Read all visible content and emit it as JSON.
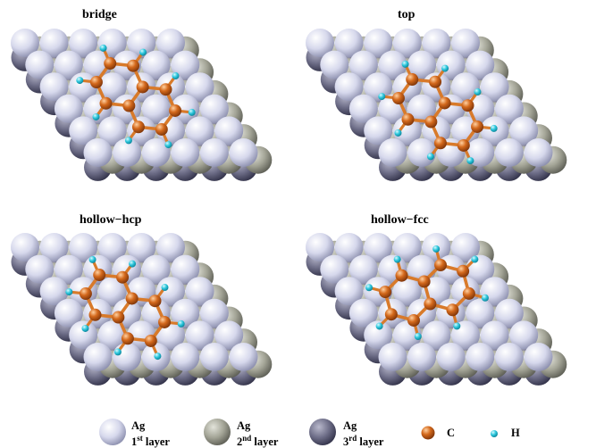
{
  "panels": [
    {
      "title": "bridge"
    },
    {
      "title": "top"
    },
    {
      "title": "hollow−hcp"
    },
    {
      "title": "hollow−fcc"
    }
  ],
  "legend": {
    "ag1": {
      "name": "Ag",
      "layer_num": "1",
      "layer_sup": "st",
      "layer_word": "layer"
    },
    "ag2": {
      "name": "Ag",
      "layer_num": "2",
      "layer_sup": "nd",
      "layer_word": "layer"
    },
    "ag3": {
      "name": "Ag",
      "layer_num": "3",
      "layer_sup": "rd",
      "layer_word": "layer"
    },
    "c": {
      "name": "C"
    },
    "h": {
      "name": "H"
    }
  },
  "colors": {
    "ag_layer1": "#d6d8ec",
    "ag_layer2": "#a3a496",
    "ag_layer3": "#6e6e88",
    "carbon": "#d4691c",
    "hydrogen": "#2bc6dc",
    "bond": "#d87a2a"
  }
}
